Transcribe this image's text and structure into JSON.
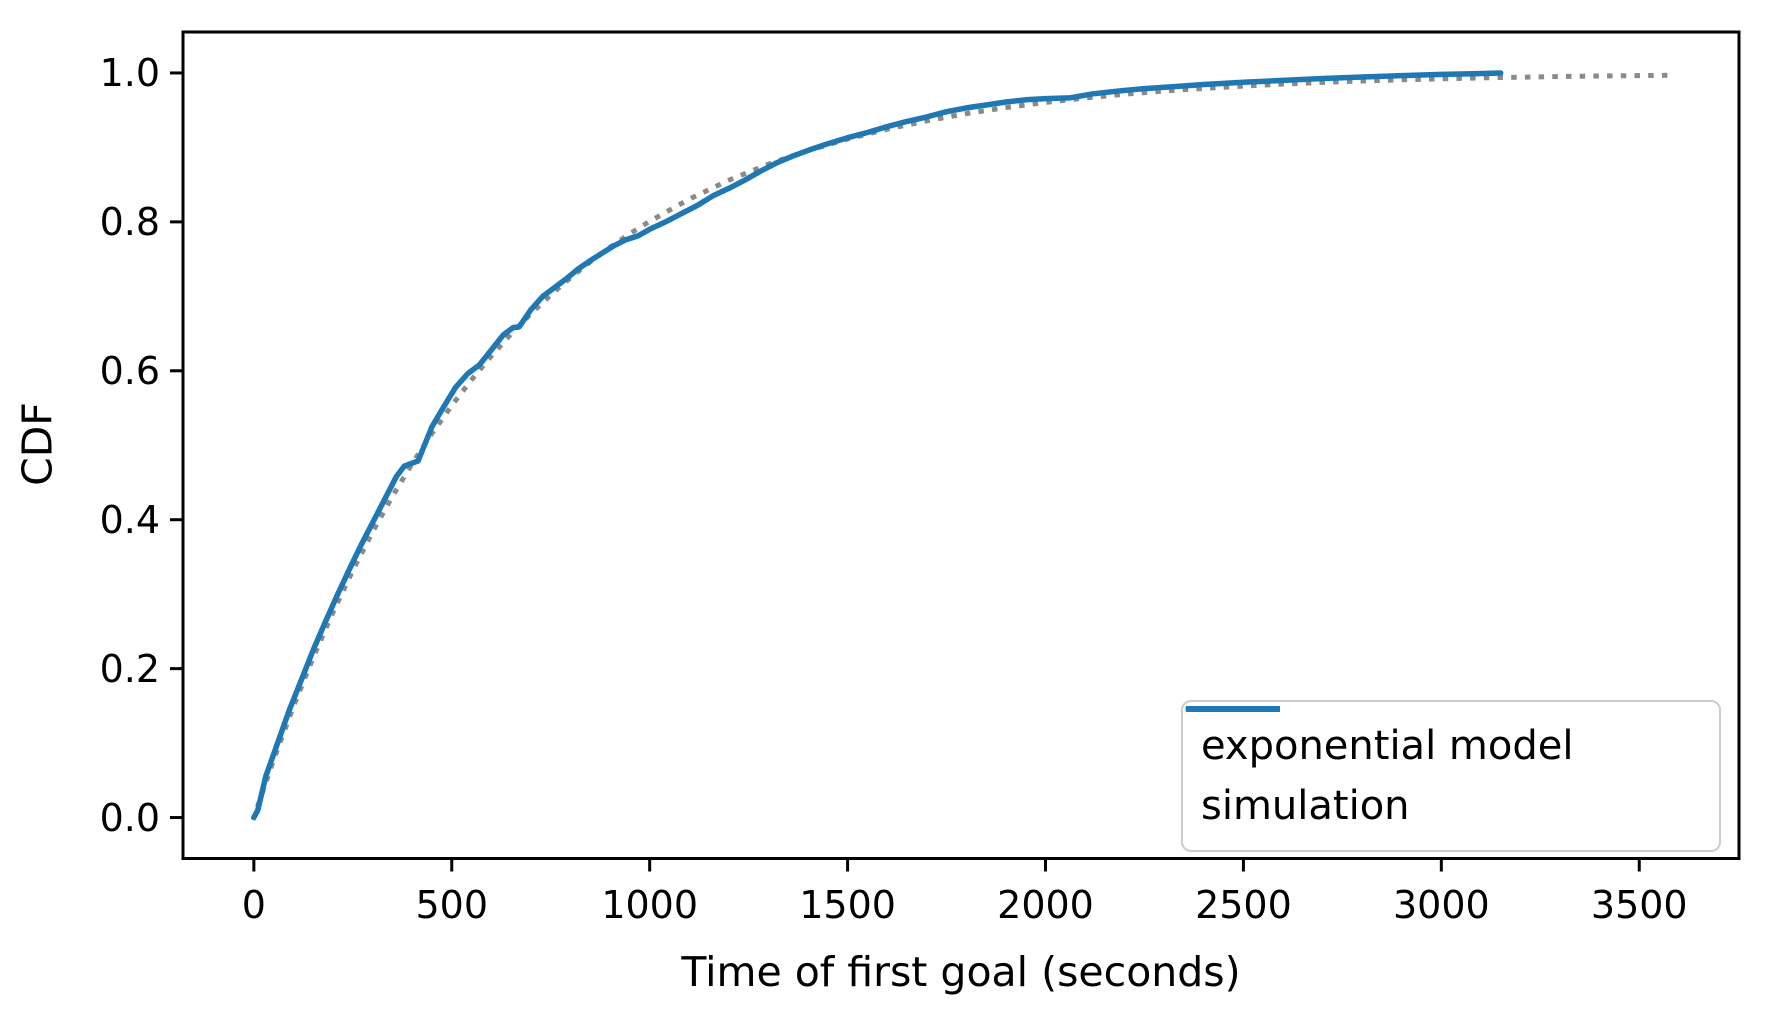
{
  "chart_data": {
    "type": "line",
    "title": "",
    "xlabel": "Time of first goal (seconds)",
    "ylabel": "CDF",
    "xlim": [
      -179,
      3752
    ],
    "ylim": [
      -0.055,
      1.055
    ],
    "grid": false,
    "x_ticks": [
      0,
      500,
      1000,
      1500,
      2000,
      2500,
      3000,
      3500
    ],
    "x_tick_labels": [
      "0",
      "500",
      "1000",
      "1500",
      "2000",
      "2500",
      "3000",
      "3500"
    ],
    "y_ticks": [
      0.0,
      0.2,
      0.4,
      0.6,
      0.8,
      1.0
    ],
    "y_tick_labels": [
      "0.0",
      "0.2",
      "0.4",
      "0.6",
      "0.8",
      "1.0"
    ],
    "legend": {
      "position": "lower right",
      "entries": [
        {
          "label": "exponential model",
          "style": "dotted",
          "color": "#8a8a8a"
        },
        {
          "label": "simulation",
          "style": "solid",
          "color": "#1f77b4"
        }
      ]
    },
    "series": [
      {
        "name": "exponential model",
        "style": "dotted",
        "color": "#8a8a8a",
        "linewidth": 5,
        "points": [
          [
            0,
            0.0
          ],
          [
            50,
            0.0775
          ],
          [
            100,
            0.149
          ],
          [
            150,
            0.215
          ],
          [
            200,
            0.2757
          ],
          [
            250,
            0.3319
          ],
          [
            300,
            0.3836
          ],
          [
            350,
            0.4314
          ],
          [
            400,
            0.4754
          ],
          [
            450,
            0.516
          ],
          [
            500,
            0.5535
          ],
          [
            550,
            0.5881
          ],
          [
            600,
            0.62
          ],
          [
            650,
            0.6495
          ],
          [
            700,
            0.6767
          ],
          [
            750,
            0.7018
          ],
          [
            800,
            0.7249
          ],
          [
            850,
            0.7462
          ],
          [
            900,
            0.7659
          ],
          [
            950,
            0.7841
          ],
          [
            1000,
            0.8008
          ],
          [
            1100,
            0.8306
          ],
          [
            1200,
            0.8559
          ],
          [
            1300,
            0.8774
          ],
          [
            1400,
            0.8957
          ],
          [
            1500,
            0.9113
          ],
          [
            1600,
            0.9245
          ],
          [
            1700,
            0.9358
          ],
          [
            1800,
            0.9454
          ],
          [
            1900,
            0.9535
          ],
          [
            2000,
            0.9605
          ],
          [
            2100,
            0.9664
          ],
          [
            2200,
            0.9714
          ],
          [
            2300,
            0.9757
          ],
          [
            2400,
            0.9793
          ],
          [
            2500,
            0.9824
          ],
          [
            2600,
            0.985
          ],
          [
            2700,
            0.9873
          ],
          [
            2800,
            0.9892
          ],
          [
            2900,
            0.9908
          ],
          [
            3000,
            0.9922
          ],
          [
            3100,
            0.9933
          ],
          [
            3200,
            0.9943
          ],
          [
            3300,
            0.9952
          ],
          [
            3400,
            0.9959
          ],
          [
            3500,
            0.9965
          ],
          [
            3573,
            0.9969
          ]
        ]
      },
      {
        "name": "simulation",
        "style": "solid",
        "color": "#1f77b4",
        "linewidth": 5.5,
        "points": [
          [
            0,
            0.0
          ],
          [
            10,
            0.01
          ],
          [
            30,
            0.055
          ],
          [
            60,
            0.1
          ],
          [
            90,
            0.145
          ],
          [
            120,
            0.185
          ],
          [
            150,
            0.225
          ],
          [
            180,
            0.262
          ],
          [
            210,
            0.298
          ],
          [
            240,
            0.332
          ],
          [
            270,
            0.365
          ],
          [
            300,
            0.396
          ],
          [
            330,
            0.427
          ],
          [
            360,
            0.458
          ],
          [
            380,
            0.472
          ],
          [
            415,
            0.479
          ],
          [
            450,
            0.525
          ],
          [
            480,
            0.552
          ],
          [
            510,
            0.578
          ],
          [
            540,
            0.596
          ],
          [
            570,
            0.608
          ],
          [
            600,
            0.628
          ],
          [
            630,
            0.648
          ],
          [
            655,
            0.658
          ],
          [
            670,
            0.659
          ],
          [
            700,
            0.682
          ],
          [
            730,
            0.7
          ],
          [
            760,
            0.712
          ],
          [
            790,
            0.724
          ],
          [
            820,
            0.737
          ],
          [
            850,
            0.748
          ],
          [
            880,
            0.758
          ],
          [
            910,
            0.768
          ],
          [
            940,
            0.776
          ],
          [
            970,
            0.781
          ],
          [
            1000,
            0.79
          ],
          [
            1040,
            0.8
          ],
          [
            1080,
            0.811
          ],
          [
            1120,
            0.822
          ],
          [
            1160,
            0.835
          ],
          [
            1200,
            0.845
          ],
          [
            1240,
            0.856
          ],
          [
            1280,
            0.868
          ],
          [
            1320,
            0.879
          ],
          [
            1360,
            0.888
          ],
          [
            1400,
            0.896
          ],
          [
            1450,
            0.905
          ],
          [
            1500,
            0.913
          ],
          [
            1550,
            0.92
          ],
          [
            1600,
            0.928
          ],
          [
            1650,
            0.935
          ],
          [
            1700,
            0.941
          ],
          [
            1750,
            0.948
          ],
          [
            1800,
            0.953
          ],
          [
            1850,
            0.957
          ],
          [
            1900,
            0.961
          ],
          [
            1950,
            0.964
          ],
          [
            2000,
            0.9655
          ],
          [
            2060,
            0.9665
          ],
          [
            2120,
            0.972
          ],
          [
            2180,
            0.9755
          ],
          [
            2250,
            0.979
          ],
          [
            2320,
            0.9815
          ],
          [
            2400,
            0.9845
          ],
          [
            2500,
            0.9875
          ],
          [
            2600,
            0.99
          ],
          [
            2700,
            0.9925
          ],
          [
            2800,
            0.9945
          ],
          [
            2900,
            0.9965
          ],
          [
            3000,
            0.998
          ],
          [
            3080,
            0.999
          ],
          [
            3150,
            1.0
          ]
        ]
      }
    ],
    "axis_color": "#000000",
    "background_color": "#ffffff"
  }
}
